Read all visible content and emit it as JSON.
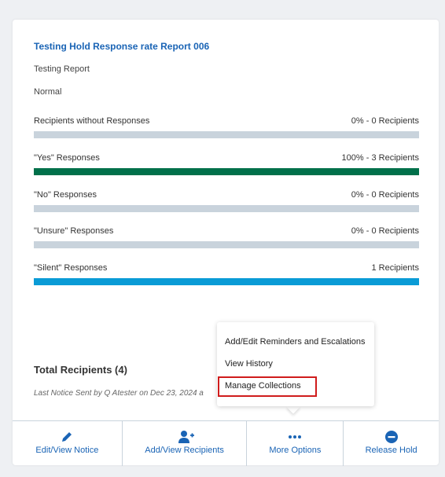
{
  "card": {
    "title": "Testing Hold Response rate Report 006",
    "subtitle": "Testing Report",
    "priority": "Normal",
    "rows": [
      {
        "label": "Recipients without Responses",
        "value": "0% - 0 Recipients",
        "color": "#c9d3dc"
      },
      {
        "label": "\"Yes\" Responses",
        "value": "100% - 3 Recipients",
        "color": "#00704a"
      },
      {
        "label": "\"No\" Responses",
        "value": "0% - 0 Recipients",
        "color": "#c9d3dc"
      },
      {
        "label": "\"Unsure\" Responses",
        "value": "0% - 0 Recipients",
        "color": "#c9d3dc"
      },
      {
        "label": "\"Silent\" Responses",
        "value": "1 Recipients",
        "color": "#0a9bd6"
      }
    ],
    "total": "Total Recipients (4)",
    "last_notice": "Last Notice Sent by Q Atester on Dec 23, 2024 a"
  },
  "menu": {
    "items": [
      "Add/Edit Reminders and Escalations",
      "View History",
      "Manage Collections"
    ]
  },
  "actions": [
    "Edit/View Notice",
    "Add/View Recipients",
    "More Options",
    "Release Hold"
  ]
}
